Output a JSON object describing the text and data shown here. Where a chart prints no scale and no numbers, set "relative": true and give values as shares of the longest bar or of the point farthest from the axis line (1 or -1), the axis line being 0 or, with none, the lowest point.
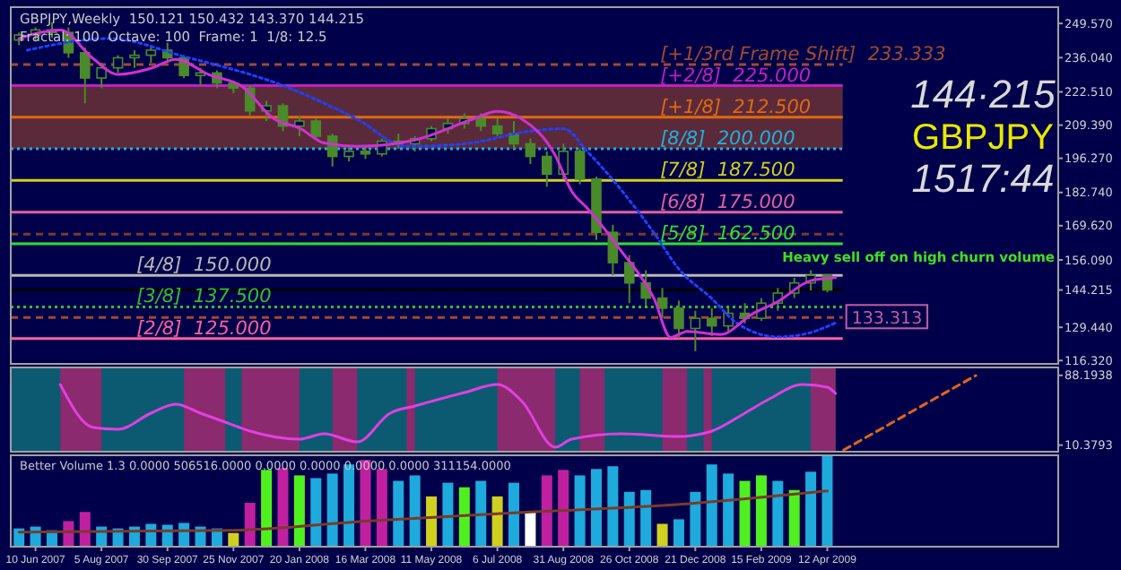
{
  "chart_data": [
    {
      "type": "candlestick",
      "title": "GBPJPY,Weekly  150.121 150.432 143.370 144.215",
      "subtitle": "Fractal: 100  Octave: 100  Frame: 1  1/8: 12.5",
      "xlim": [
        "2007-05-20",
        "2009-10-25"
      ],
      "ylim": [
        115,
        256
      ],
      "tick_labels": "y",
      "yticks": [
        {
          "value": 249.57,
          "label": "249.570"
        },
        {
          "value": 236.04,
          "label": "236.040"
        },
        {
          "value": 222.51,
          "label": "222.510"
        },
        {
          "value": 209.39,
          "label": "209.390"
        },
        {
          "value": 196.27,
          "label": "196.270"
        },
        {
          "value": 182.74,
          "label": "182.740"
        },
        {
          "value": 169.62,
          "label": "169.620"
        },
        {
          "value": 156.09,
          "label": "156.090"
        },
        144.215,
        {
          "value": 129.44,
          "label": "129.440"
        },
        {
          "value": 116.32,
          "label": "116.320"
        }
      ],
      "bands": [
        {
          "axis": "y",
          "from": 200,
          "to": 225,
          "color": "#5a2a3a"
        }
      ],
      "ref_lines": [
        {
          "axis": "y",
          "value": 233.333,
          "label": "[+1/3rd Frame Shift]  233.333",
          "color": "#a04a30",
          "line_style": "dashed"
        },
        {
          "axis": "y",
          "value": 225,
          "label": "[+2/8]  225.000",
          "color": "#c020c0",
          "line_style": "solid"
        },
        {
          "axis": "y",
          "value": 212.5,
          "label": "[+1/8]  212.500",
          "color": "#e06a10",
          "line_style": "solid"
        },
        {
          "axis": "y",
          "value": 200,
          "label": "[8/8]  200.000",
          "color": "#20b0e0",
          "line_style": "dotted"
        },
        {
          "axis": "y",
          "value": 187.5,
          "label": "[7/8]  187.500",
          "color": "#d0d020",
          "line_style": "solid"
        },
        {
          "axis": "y",
          "value": 175,
          "label": "[6/8]  175.000",
          "color": "#e060a0",
          "line_style": "solid"
        },
        {
          "axis": "y",
          "value": 166.3,
          "color": "#7a3a2a",
          "line_style": "dashed"
        },
        {
          "axis": "y",
          "value": 162.5,
          "label": "[5/8]  162.500",
          "color": "#30e030",
          "line_style": "solid"
        },
        {
          "axis": "y",
          "value": 150,
          "label": "[4/8]  150.000",
          "color": "#b8b8b8",
          "line_style": "solid"
        },
        {
          "axis": "y",
          "value": 144.215,
          "color": "#000000",
          "line_style": "solid"
        },
        {
          "axis": "y",
          "value": 137.5,
          "label": "[3/8]  137.500",
          "color": "#30c030",
          "line_style": "dotted"
        },
        {
          "axis": "y",
          "value": 133.313,
          "color": "#a04a30",
          "line_style": "dashed"
        },
        {
          "axis": "y",
          "value": 125,
          "label": "[2/8]  125.000",
          "color": "#ff60a0",
          "line_style": "solid"
        }
      ],
      "annotations": [
        "144·215",
        "GBPJPY",
        "1517:44",
        "Heavy sell off on high churn volume",
        {
          "text": "133.313",
          "x": "2009-04-19",
          "y": 133.313
        }
      ],
      "series": [
        {
          "color": "#4a8a2a",
          "x": [
            "2007-05-27",
            "2007-06-10",
            "2007-06-24",
            "2007-07-08",
            "2007-07-22",
            "2007-08-05",
            "2007-08-19",
            "2007-09-02",
            "2007-09-16",
            "2007-09-30",
            "2007-10-14",
            "2007-10-28",
            "2007-11-11",
            "2007-11-25",
            "2007-12-09",
            "2007-12-23",
            "2008-01-06",
            "2008-01-20",
            "2008-02-03",
            "2008-02-17",
            "2008-03-02",
            "2008-03-16",
            "2008-03-30",
            "2008-04-13",
            "2008-04-27",
            "2008-05-11",
            "2008-05-25",
            "2008-06-08",
            "2008-06-22",
            "2008-07-06",
            "2008-07-20",
            "2008-08-03",
            "2008-08-17",
            "2008-08-31",
            "2008-09-14",
            "2008-09-28",
            "2008-10-12",
            "2008-10-26",
            "2008-11-09",
            "2008-11-23",
            "2008-12-07",
            "2008-12-21",
            "2009-01-04",
            "2009-01-18",
            "2009-02-01",
            "2009-02-15",
            "2009-03-01",
            "2009-03-15",
            "2009-03-29",
            "2009-04-12"
          ],
          "ohlc": [
            [
              243,
              246,
              241,
              245
            ],
            [
              245,
              248,
              243,
              247
            ],
            [
              247,
              250,
              244,
              246
            ],
            [
              246,
              248,
              236,
              238
            ],
            [
              238,
              240,
              218,
              228
            ],
            [
              228,
              234,
              224,
              232
            ],
            [
              232,
              237,
              230,
              236
            ],
            [
              236,
              239,
              232,
              237
            ],
            [
              237,
              241,
              234,
              239
            ],
            [
              239,
              242,
              234,
              236
            ],
            [
              236,
              237,
              228,
              229
            ],
            [
              229,
              232,
              225,
              230
            ],
            [
              230,
              231,
              224,
              226
            ],
            [
              226,
              227,
              222,
              224
            ],
            [
              224,
              225,
              213,
              215
            ],
            [
              215,
              219,
              211,
              217
            ],
            [
              217,
              218,
              207,
              209
            ],
            [
              209,
              213,
              205,
              211
            ],
            [
              211,
              212,
              204,
              205
            ],
            [
              205,
              206,
              193,
              197
            ],
            [
              197,
              201,
              195,
              199
            ],
            [
              199,
              201,
              196,
              198
            ],
            [
              198,
              204,
              197,
              203
            ],
            [
              203,
              206,
              200,
              202
            ],
            [
              202,
              205,
              199,
              204
            ],
            [
              204,
              209,
              203,
              208
            ],
            [
              208,
              212,
              206,
              210
            ],
            [
              210,
              214,
              208,
              212
            ],
            [
              212,
              214,
              207,
              209
            ],
            [
              209,
              212,
              205,
              206
            ],
            [
              206,
              211,
              200,
              202
            ],
            [
              202,
              204,
              194,
              197
            ],
            [
              197,
              199,
              185,
              190
            ],
            [
              190,
              202,
              188,
              199
            ],
            [
              199,
              200,
              186,
              188
            ],
            [
              188,
              189,
              164,
              167
            ],
            [
              167,
              170,
              150,
              155
            ],
            [
              155,
              158,
              139,
              147
            ],
            [
              147,
              152,
              138,
              141
            ],
            [
              141,
              145,
              133,
              137
            ],
            [
              137,
              140,
              125,
              129
            ],
            [
              129,
              136,
              120,
              133
            ],
            [
              133,
              137,
              126,
              130
            ],
            [
              130,
              137,
              128,
              135
            ],
            [
              135,
              139,
              131,
              133
            ],
            [
              133,
              141,
              132,
              139
            ],
            [
              139,
              145,
              136,
              143
            ],
            [
              143,
              149,
              141,
              147
            ],
            [
              147,
              152,
              144,
              150
            ],
            [
              150.121,
              150.432,
              143.37,
              144.215
            ]
          ]
        },
        {
          "type": "line",
          "color": "#2040ff",
          "line_style": "dotted",
          "x": [
            "2007-06-03",
            "2007-08-12",
            "2007-10-14",
            "2008-01-06",
            "2008-03-09",
            "2008-04-20",
            "2008-06-08",
            "2008-08-03",
            "2008-08-31",
            "2008-09-21",
            "2008-11-16",
            "2008-12-07",
            "2009-01-04",
            "2009-01-25",
            "2009-03-01",
            "2009-03-22",
            "2009-04-19"
          ],
          "values": [
            239,
            243.6,
            236.5,
            225,
            211.7,
            201,
            202,
            207,
            208,
            198.6,
            166.7,
            152.5,
            140.8,
            131.2,
            125.7,
            126.6,
            131.2
          ]
        },
        {
          "type": "line",
          "color": "#d030d0",
          "line_style": "solid",
          "x": [
            "2007-05-27",
            "2007-07-01",
            "2007-07-29",
            "2007-08-19",
            "2007-09-16",
            "2007-10-07",
            "2007-11-04",
            "2007-12-02",
            "2007-12-30",
            "2008-01-20",
            "2008-02-10",
            "2008-03-09",
            "2008-04-27",
            "2008-06-15",
            "2008-07-06",
            "2008-07-27",
            "2008-08-24",
            "2008-09-07",
            "2008-09-21",
            "2008-10-19",
            "2008-11-16",
            "2008-11-30",
            "2008-12-14",
            "2009-01-11",
            "2009-02-08",
            "2009-03-01",
            "2009-03-29",
            "2009-04-19"
          ],
          "values": [
            243.6,
            247,
            235.6,
            229.4,
            231.8,
            235.4,
            229.4,
            224.7,
            211.7,
            208.2,
            202.3,
            201,
            203.5,
            211.7,
            214.8,
            211.7,
            197.5,
            183.3,
            176.2,
            159.7,
            140.8,
            125.5,
            127.8,
            126.6,
            134.9,
            139.6,
            147.9,
            149.1
          ]
        }
      ]
    },
    {
      "type": "line",
      "xlim": [
        "2007-05-20",
        "2009-10-25"
      ],
      "ylim": [
        3,
        97
      ],
      "tick_labels": "y",
      "yticks": [
        88.1938,
        10.3793
      ],
      "bands": [
        {
          "axis": "x",
          "from": "2007-05-20",
          "to": "2009-04-19",
          "color": "#0b5a72"
        },
        {
          "axis": "x",
          "from": "2007-07-01",
          "to": "2007-08-05",
          "color": "#8b2a6e"
        },
        {
          "axis": "x",
          "from": "2007-10-14",
          "to": "2007-11-18",
          "color": "#8b2a6e"
        },
        {
          "axis": "x",
          "from": "2007-12-02",
          "to": "2008-01-20",
          "color": "#8b2a6e"
        },
        {
          "axis": "x",
          "from": "2008-02-17",
          "to": "2008-03-09",
          "color": "#8b2a6e"
        },
        {
          "axis": "x",
          "from": "2008-04-20",
          "to": "2008-04-27",
          "color": "#8b2a6e"
        },
        {
          "axis": "x",
          "from": "2008-07-06",
          "to": "2008-08-24",
          "color": "#8b2a6e"
        },
        {
          "axis": "x",
          "from": "2008-09-14",
          "to": "2008-10-05",
          "color": "#8b2a6e"
        },
        {
          "axis": "x",
          "from": "2008-11-23",
          "to": "2008-12-14",
          "color": "#8b2a6e"
        },
        {
          "axis": "x",
          "from": "2008-12-28",
          "to": "2009-01-04",
          "color": "#8b2a6e"
        },
        {
          "axis": "x",
          "from": "2009-03-29",
          "to": "2009-04-19",
          "color": "#8b2a6e"
        }
      ],
      "series": [
        {
          "color": "#e040e0",
          "line_style": "solid",
          "x": [
            "2007-07-01",
            "2007-07-29",
            "2007-08-19",
            "2007-09-16",
            "2007-10-07",
            "2007-10-28",
            "2007-11-18",
            "2007-12-09",
            "2008-01-20",
            "2008-02-10",
            "2008-03-09",
            "2008-04-06",
            "2008-04-27",
            "2008-06-08",
            "2008-07-06",
            "2008-07-27",
            "2008-08-24",
            "2008-09-07",
            "2008-10-19",
            "2008-12-07",
            "2009-01-04",
            "2009-02-01",
            "2009-02-22",
            "2009-03-22",
            "2009-04-12",
            "2009-04-19"
          ],
          "values": [
            78,
            30,
            28,
            46,
            56,
            46,
            36,
            26,
            17,
            23,
            14,
            46,
            54,
            69,
            78,
            59,
            8,
            17,
            23,
            20,
            26,
            46,
            62,
            78,
            75,
            68
          ]
        },
        {
          "color": "#e0641e",
          "line_style": "dashed",
          "x": [
            "2009-04-26",
            "2009-08-16"
          ],
          "values": [
            5,
            88
          ]
        }
      ]
    },
    {
      "type": "bar",
      "title": "Better Volume 1.3 0.0000 506516.0000 0.0000 0.0000 0.0000 0.0000 311154.0000",
      "relative": true,
      "xlim": [
        "2007-05-20",
        "2009-10-25"
      ],
      "tick_labels": "x",
      "xticks": [
        {
          "value": "2007-06-10",
          "label": "10 Jun 2007"
        },
        {
          "value": "2007-08-05",
          "label": "5 Aug 2007"
        },
        {
          "value": "2007-09-30",
          "label": "30 Sep 2007"
        },
        {
          "value": "2007-11-25",
          "label": "25 Nov 2007"
        },
        {
          "value": "2008-01-20",
          "label": "20 Jan 2008"
        },
        {
          "value": "2008-03-16",
          "label": "16 Mar 2008"
        },
        {
          "value": "2008-05-11",
          "label": "11 May 2008"
        },
        {
          "value": "2008-07-06",
          "label": "6 Jul 2008"
        },
        {
          "value": "2008-08-31",
          "label": "31 Aug 2008"
        },
        {
          "value": "2008-10-26",
          "label": "26 Oct 2008"
        },
        {
          "value": "2008-12-21",
          "label": "21 Dec 2008"
        },
        {
          "value": "2009-02-15",
          "label": "15 Feb 2009"
        },
        {
          "value": "2009-04-12",
          "label": "12 Apr 2009"
        }
      ],
      "series": [
        {
          "x": [
            "2007-05-27",
            "2007-06-10",
            "2007-06-24",
            "2007-07-08",
            "2007-07-22",
            "2007-08-05",
            "2007-08-19",
            "2007-09-02",
            "2007-09-16",
            "2007-09-30",
            "2007-10-14",
            "2007-10-28",
            "2007-11-11",
            "2007-11-25",
            "2007-12-09",
            "2007-12-23",
            "2008-01-06",
            "2008-01-20",
            "2008-02-03",
            "2008-02-17",
            "2008-03-02",
            "2008-03-16",
            "2008-03-30",
            "2008-04-13",
            "2008-04-27",
            "2008-05-11",
            "2008-05-25",
            "2008-06-08",
            "2008-06-22",
            "2008-07-06",
            "2008-07-20",
            "2008-08-03",
            "2008-08-17",
            "2008-08-31",
            "2008-09-14",
            "2008-09-28",
            "2008-10-12",
            "2008-10-26",
            "2008-11-09",
            "2008-11-23",
            "2008-12-07",
            "2008-12-21",
            "2009-01-04",
            "2009-01-18",
            "2009-02-01",
            "2009-02-15",
            "2009-03-01",
            "2009-03-15",
            "2009-03-29",
            "2009-04-12"
          ],
          "values": [
            0.2,
            0.22,
            0.18,
            0.28,
            0.38,
            0.22,
            0.2,
            0.22,
            0.25,
            0.24,
            0.26,
            0.22,
            0.2,
            0.15,
            0.48,
            0.84,
            0.86,
            0.78,
            0.75,
            0.8,
            0.9,
            0.95,
            0.85,
            0.72,
            0.78,
            0.55,
            0.7,
            0.65,
            0.72,
            0.55,
            0.7,
            0.38,
            0.78,
            0.84,
            0.78,
            0.85,
            0.88,
            0.6,
            0.62,
            0.25,
            0.3,
            0.6,
            0.9,
            0.8,
            0.72,
            0.78,
            0.72,
            0.62,
            0.82,
            1
          ],
          "colors": [
            "#1eaadc",
            "#1eaadc",
            "#1eaadc",
            "#c020a0",
            "#c020a0",
            "#1eaadc",
            "#1eaadc",
            "#1eaadc",
            "#1eaadc",
            "#1eaadc",
            "#1eaadc",
            "#1eaadc",
            "#1eaadc",
            "#d0d020",
            "#c020a0",
            "#50f020",
            "#c020a0",
            "#50f020",
            "#1eaadc",
            "#1eaadc",
            "#1eaadc",
            "#c020a0",
            "#c020a0",
            "#1eaadc",
            "#1eaadc",
            "#d0d020",
            "#1eaadc",
            "#50f020",
            "#1eaadc",
            "#d0d020",
            "#1eaadc",
            "#ffffff",
            "#c020a0",
            "#c020a0",
            "#1eaadc",
            "#1eaadc",
            "#1eaadc",
            "#1eaadc",
            "#1eaadc",
            "#d0d020",
            "#1eaadc",
            "#1eaadc",
            "#1eaadc",
            "#1eaadc",
            "#50f020",
            "#50f020",
            "#1eaadc",
            "#50f020",
            "#1eaadc",
            "#1eaadc"
          ]
        },
        {
          "type": "line",
          "color": "#7a3a2a",
          "line_style": "solid",
          "x": [
            "2007-05-27",
            "2007-11-25",
            "2008-03-16",
            "2008-08-03",
            "2008-11-23",
            "2009-04-12"
          ],
          "values": [
            0.16,
            0.18,
            0.28,
            0.38,
            0.45,
            0.61
          ]
        }
      ]
    }
  ]
}
